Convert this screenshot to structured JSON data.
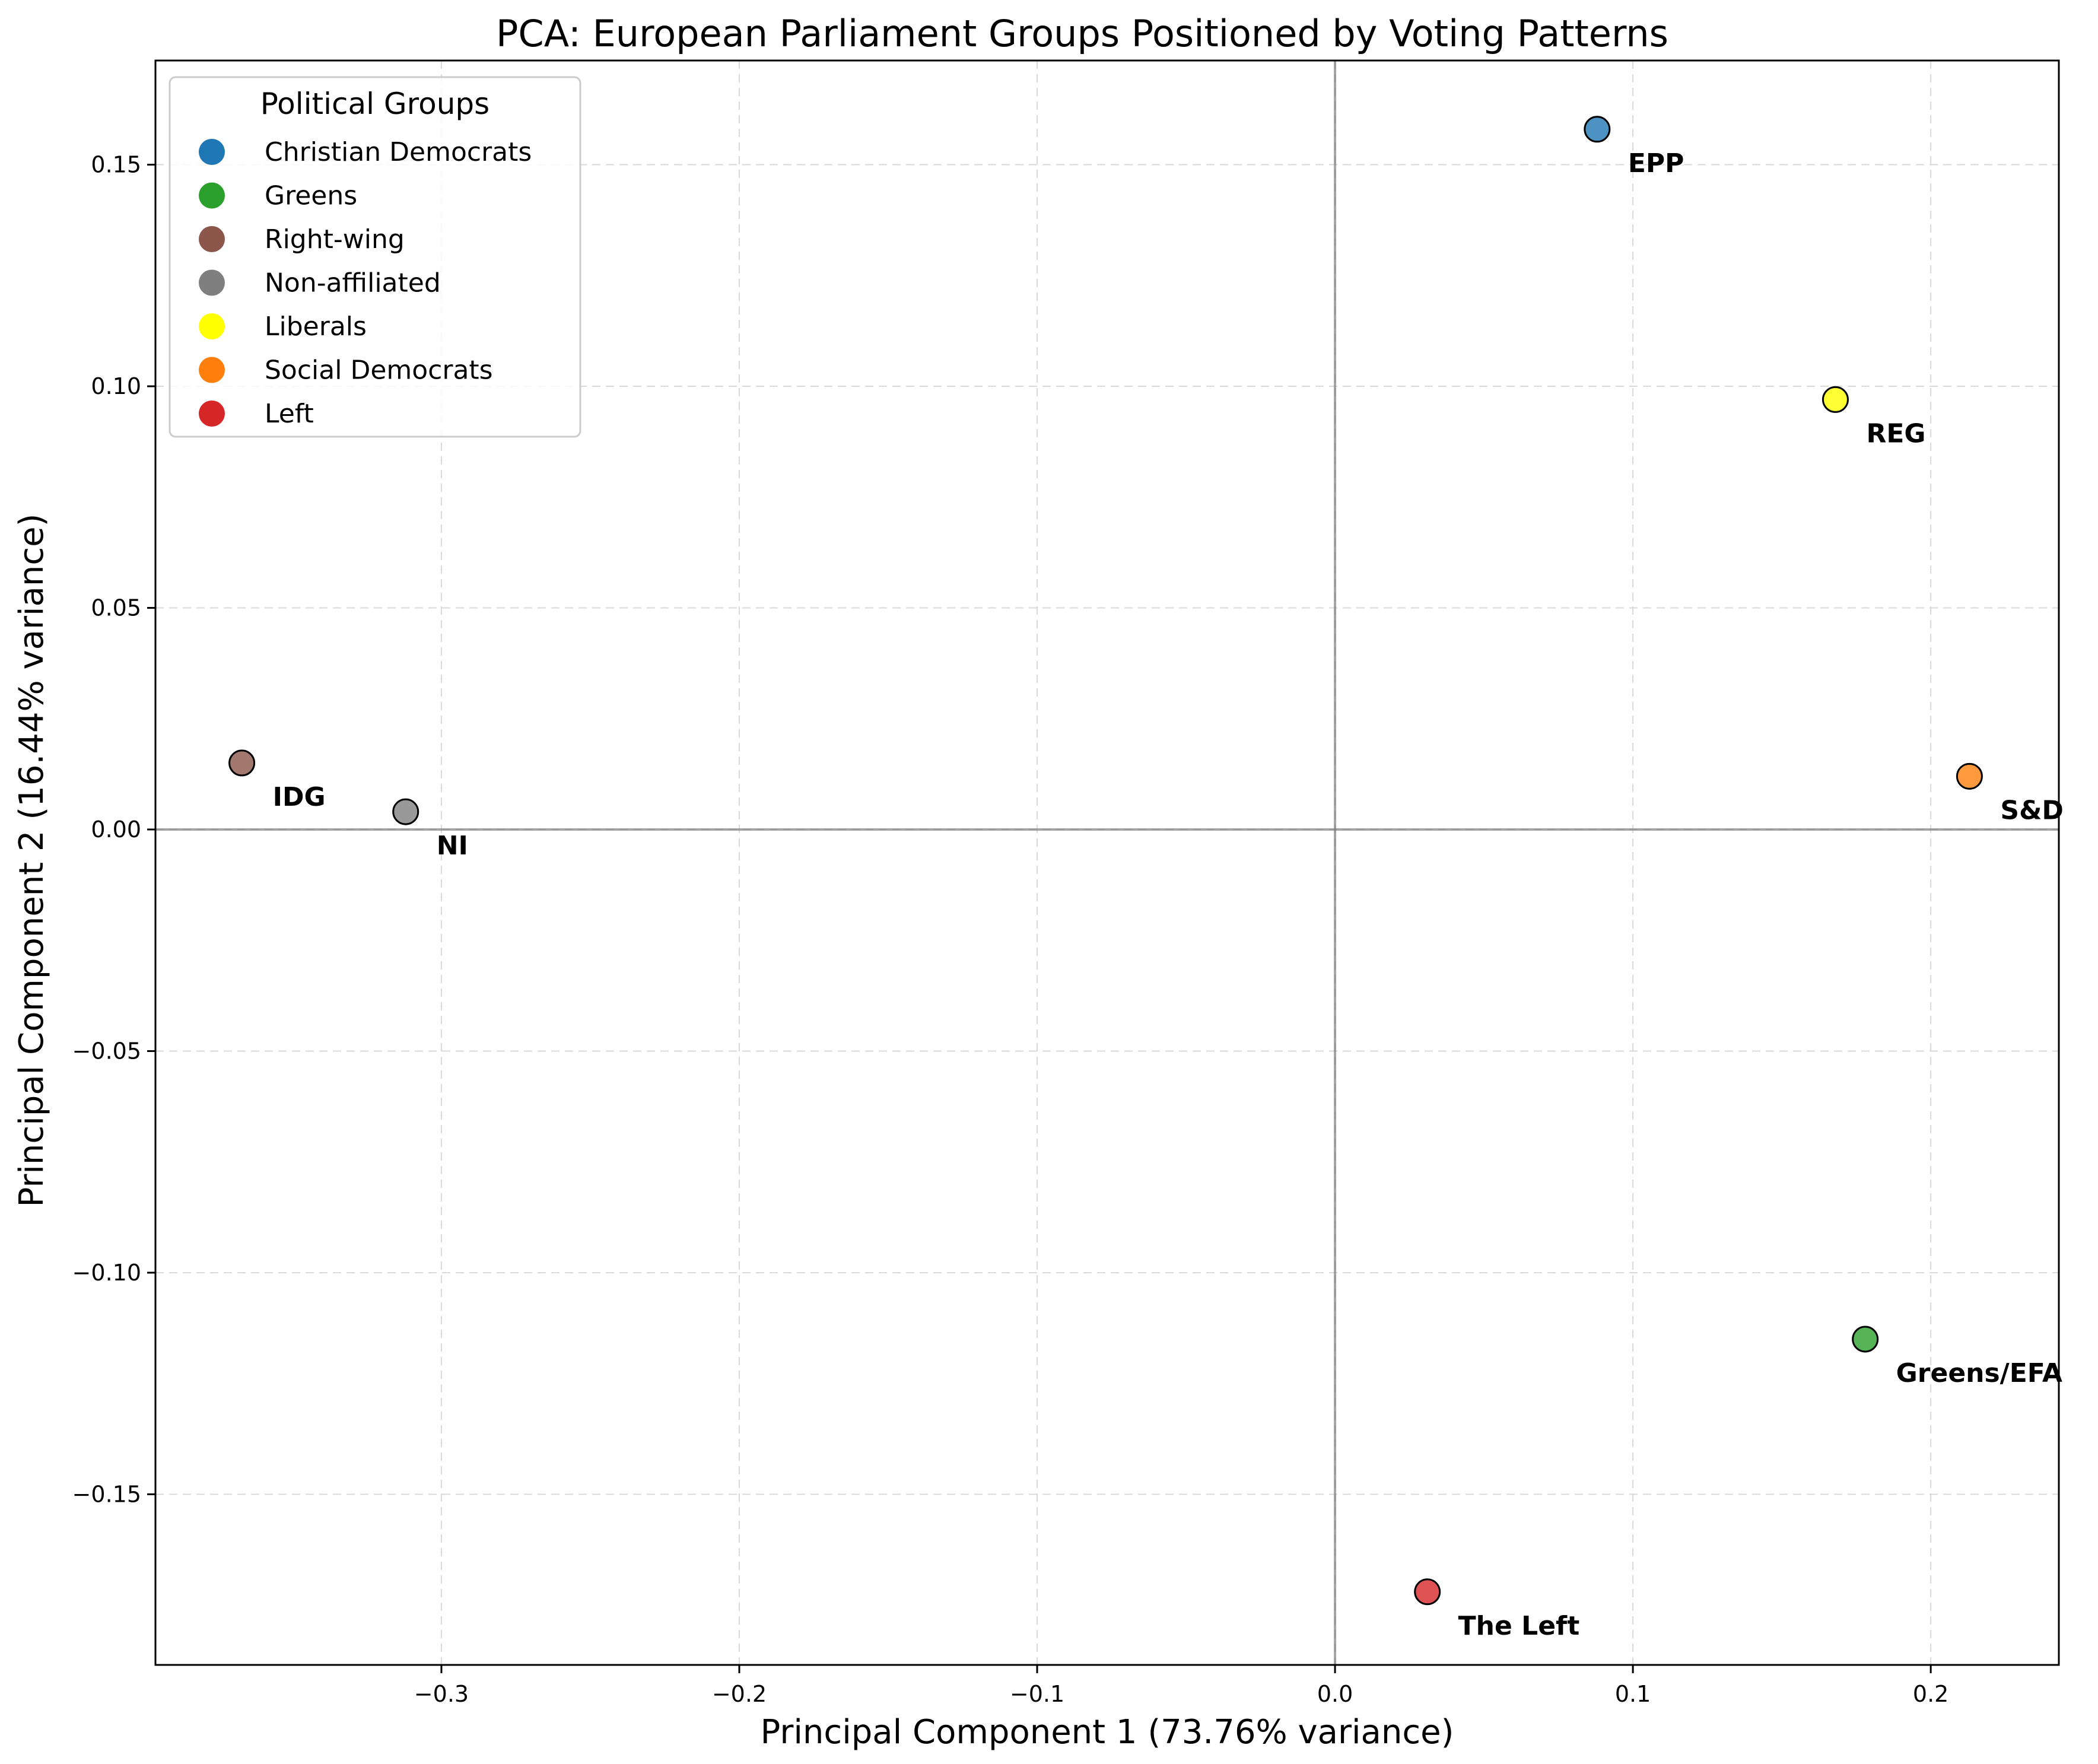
{
  "chart_data": {
    "type": "scatter",
    "title": "PCA: European Parliament Groups Positioned by Voting Patterns",
    "xlabel": "Principal Component 1 (73.76% variance)",
    "ylabel": "Principal Component 2 (16.44% variance)",
    "xlim": [
      -0.396,
      0.243
    ],
    "ylim": [
      -0.1885,
      0.1735
    ],
    "xticks": [
      -0.3,
      -0.2,
      -0.1,
      0.0,
      0.1,
      0.2
    ],
    "xtick_labels": [
      "−0.3",
      "−0.2",
      "−0.1",
      "0.0",
      "0.1",
      "0.2"
    ],
    "yticks": [
      -0.15,
      -0.1,
      -0.05,
      0.0,
      0.05,
      0.1,
      0.15
    ],
    "ytick_labels": [
      "−0.15",
      "−0.10",
      "−0.05",
      "0.00",
      "0.05",
      "0.10",
      "0.15"
    ],
    "grid": true,
    "legend": {
      "title": "Political Groups",
      "placement": "top-left",
      "entries": [
        {
          "label": "Christian Democrats",
          "color": "#1f77b4"
        },
        {
          "label": "Greens",
          "color": "#2ca02c"
        },
        {
          "label": "Right-wing",
          "color": "#8c564b"
        },
        {
          "label": "Non-affiliated",
          "color": "#7f7f7f"
        },
        {
          "label": "Liberals",
          "color": "#ffff00"
        },
        {
          "label": "Social Democrats",
          "color": "#ff7f0e"
        },
        {
          "label": "Left",
          "color": "#d62728"
        }
      ]
    },
    "points": [
      {
        "label": "EPP",
        "x": 0.088,
        "y": 0.158,
        "color": "#1f77b4"
      },
      {
        "label": "REG",
        "x": 0.168,
        "y": 0.097,
        "color": "#ffff00"
      },
      {
        "label": "S&D",
        "x": 0.213,
        "y": 0.012,
        "color": "#ff7f0e"
      },
      {
        "label": "IDG",
        "x": -0.367,
        "y": 0.015,
        "color": "#8c564b"
      },
      {
        "label": "NI",
        "x": -0.312,
        "y": 0.004,
        "color": "#7f7f7f"
      },
      {
        "label": "Greens/EFA",
        "x": 0.178,
        "y": -0.115,
        "color": "#2ca02c"
      },
      {
        "label": "The Left",
        "x": 0.031,
        "y": -0.172,
        "color": "#d62728"
      }
    ]
  }
}
